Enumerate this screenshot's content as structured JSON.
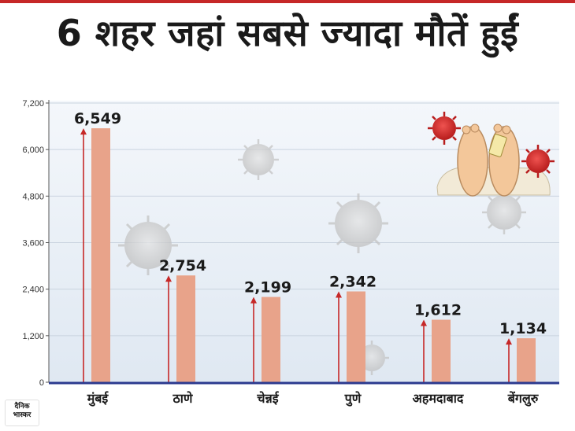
{
  "title": "6 शहर जहां सबसे ज्यादा मौतें हुईं",
  "logo_text": "दैनिक भास्कर",
  "colors": {
    "bar": "#e8a38a",
    "arrow": "#c62828",
    "axis": "#2b3a8f",
    "grid": "#c9d3df",
    "virus": "#cfcfcf",
    "label": "#1a1a1a"
  },
  "chart_data": {
    "type": "bar",
    "categories": [
      "मुंबई",
      "ठाणे",
      "चेन्नई",
      "पुणे",
      "अहमदाबाद",
      "बेंगलुरु"
    ],
    "values": [
      6549,
      2754,
      2199,
      2342,
      1612,
      1134
    ],
    "value_labels": [
      "6,549",
      "2,754",
      "2,199",
      "2,342",
      "1,612",
      "1,134"
    ],
    "y_ticks": [
      "0",
      "1,200",
      "2,400",
      "3,600",
      "4,800",
      "6,000",
      "7,200"
    ],
    "y_tick_values": [
      0,
      1200,
      2400,
      3600,
      4800,
      6000,
      7200
    ],
    "ylim": [
      0,
      7200
    ],
    "grid": true,
    "xlabel": "",
    "ylabel": ""
  }
}
